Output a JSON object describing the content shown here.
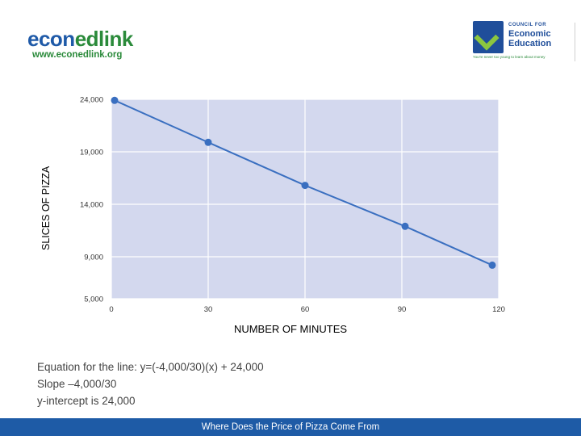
{
  "logos": {
    "left": {
      "brand_a": "econ",
      "brand_b": "edlink",
      "url": "www.econedlink.org"
    },
    "right": {
      "line1": "COUNCIL FOR",
      "line2": "Economic",
      "line3": "Education",
      "tagline": "You're never too young to learn about money"
    }
  },
  "chart_data": {
    "type": "line",
    "xlabel": "NUMBER OF MINUTES",
    "ylabel": "SLICES OF PIZZA",
    "x_ticks": [
      "0",
      "30",
      "60",
      "90",
      "120"
    ],
    "y_ticks": [
      "24,000",
      "19,000",
      "14,000",
      "9,000",
      "5,000"
    ],
    "xlim": [
      0,
      120
    ],
    "ylim": [
      5000,
      24000
    ],
    "grid": true,
    "series": [
      {
        "x": [
          1,
          30,
          60,
          91,
          118
        ],
        "y": [
          23900,
          19900,
          15800,
          11900,
          8200
        ],
        "color": "#3a6fc0"
      }
    ],
    "plot_background": "#d3d8ee"
  },
  "notes": {
    "line1": "Equation for the line: y=(-4,000/30)(x) + 24,000",
    "line2": "Slope –4,000/30",
    "line3": "y-intercept is 24,000"
  },
  "footer": {
    "text": "Where Does the Price of Pizza Come From",
    "color": "#1e5ba6"
  }
}
